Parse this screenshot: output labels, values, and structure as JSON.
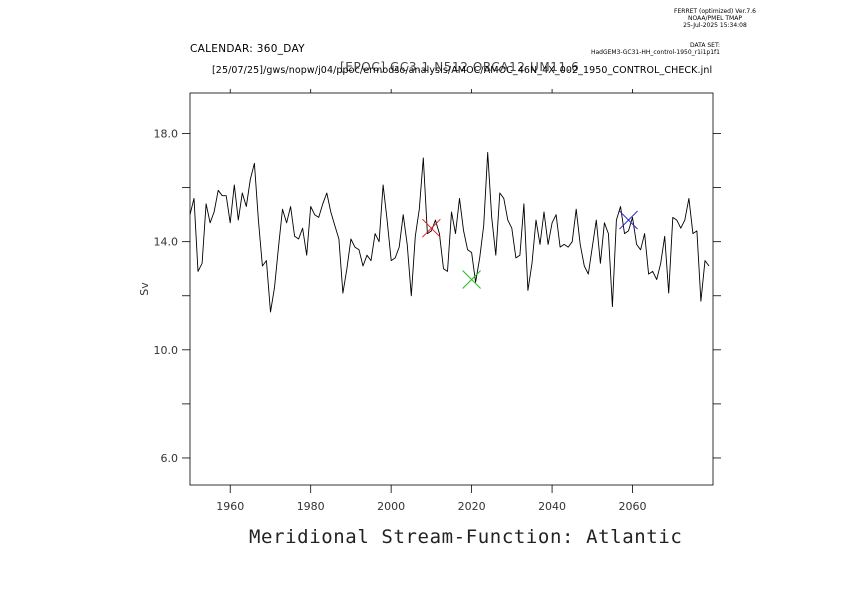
{
  "header": {
    "ferret_lines": [
      "FERRET (optimized) Ver.7.6",
      "NOAA/PMEL TMAP",
      "25-Jul-2025 15:34:08"
    ],
    "dataset_lines": [
      "DATA SET:",
      "HadGEM3-GC31-HH_control-1950_r1i1p1f1"
    ],
    "calendar": "CALENDAR: 360_DAY",
    "jnl_path": "[25/07/25]/gws/nopw/j04/ppoc/ermodso/analysis/AMOC/AMOC_46N_4X_002_1950_CONTROL_CHECK.jnl",
    "overlay_title": "[EPOC] GC3.1 N512 ORCA12 UM11.6"
  },
  "chart_data": {
    "type": "line",
    "title": "Meridional Stream-Function: Atlantic",
    "xlabel": "",
    "ylabel": "Sv",
    "xlim": [
      1950,
      2080
    ],
    "ylim": [
      5,
      19.5
    ],
    "x_ticks": [
      1960,
      1980,
      2000,
      2020,
      2040,
      2060
    ],
    "x_tick_labels": [
      "1960",
      "1980",
      "2000",
      "2020",
      "2040",
      "2060"
    ],
    "y_ticks": [
      6,
      10,
      14,
      18
    ],
    "y_tick_labels": [
      "6.0",
      "10.0",
      "14.0",
      "18.0"
    ],
    "y_minor_ticks": [
      8,
      12,
      16
    ],
    "grid": false,
    "line_color": "#000000",
    "x_start": 1950,
    "x_step": 1,
    "series": [
      {
        "name": "",
        "values": [
          15.0,
          15.6,
          12.9,
          13.2,
          15.4,
          14.7,
          15.1,
          15.9,
          15.7,
          15.7,
          14.7,
          16.1,
          14.8,
          15.8,
          15.3,
          16.3,
          16.9,
          14.8,
          13.1,
          13.3,
          11.4,
          12.3,
          13.8,
          15.2,
          14.7,
          15.3,
          14.2,
          14.1,
          14.5,
          13.5,
          15.3,
          15.0,
          14.9,
          15.4,
          15.8,
          15.1,
          14.6,
          14.1,
          12.1,
          13.0,
          14.1,
          13.8,
          13.7,
          13.1,
          13.5,
          13.3,
          14.3,
          14.0,
          16.1,
          14.8,
          13.3,
          13.4,
          13.8,
          15.0,
          13.9,
          12.0,
          14.2,
          15.2,
          17.1,
          14.3,
          14.4,
          14.8,
          14.3,
          13.0,
          12.9,
          15.1,
          14.3,
          15.6,
          14.4,
          13.7,
          13.6,
          12.5,
          13.4,
          14.6,
          17.3,
          14.9,
          13.5,
          15.8,
          15.6,
          14.8,
          14.5,
          13.4,
          13.5,
          15.4,
          12.2,
          13.2,
          14.8,
          13.9,
          15.1,
          13.9,
          14.7,
          15.0,
          13.8,
          13.9,
          13.8,
          14.0,
          15.2,
          13.9,
          13.1,
          12.8,
          13.8,
          14.8,
          13.2,
          14.7,
          14.3,
          11.6,
          14.8,
          15.3,
          14.3,
          14.4,
          14.9,
          13.9,
          13.7,
          14.3,
          12.8,
          12.9,
          12.6,
          13.2,
          14.2,
          12.1,
          14.9,
          14.8,
          14.5,
          14.8,
          15.6,
          14.3,
          14.4,
          11.8,
          13.3,
          13.1
        ]
      }
    ],
    "markers": [
      {
        "x": 2010,
        "y": 14.5,
        "color": "#e02020"
      },
      {
        "x": 2020,
        "y": 12.6,
        "color": "#20c020"
      },
      {
        "x": 2059,
        "y": 14.8,
        "color": "#2020d0"
      }
    ]
  }
}
